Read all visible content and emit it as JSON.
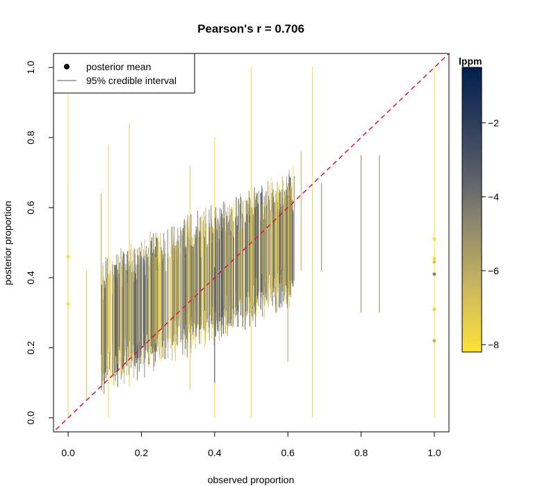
{
  "chart_data": {
    "type": "scatter",
    "title": "Pearson's r = 0.706",
    "xlabel": "observed proportion",
    "ylabel": "posterior proportion",
    "xlim": [
      -0.04,
      1.04
    ],
    "ylim": [
      -0.04,
      1.04
    ],
    "x_ticks": [
      "0.0",
      "0.2",
      "0.4",
      "0.6",
      "0.8",
      "1.0"
    ],
    "y_ticks": [
      "0.0",
      "0.2",
      "0.4",
      "0.6",
      "0.8",
      "1.0"
    ],
    "x_tick_values": [
      0,
      0.2,
      0.4,
      0.6,
      0.8,
      1.0
    ],
    "y_tick_values": [
      0,
      0.2,
      0.4,
      0.6,
      0.8,
      1.0
    ],
    "reference_line": {
      "from": [
        0,
        0
      ],
      "to": [
        1,
        1
      ],
      "style": "dashed",
      "color": "#dc143c"
    },
    "legend": {
      "placement": "top-left",
      "entries": [
        {
          "label": "posterior mean",
          "symbol": "point"
        },
        {
          "label": "95% credible interval",
          "symbol": "line"
        }
      ]
    },
    "colorbar": {
      "title": "lppm",
      "range": [
        -8.2,
        -0.5
      ],
      "tick_values": [
        -2,
        -4,
        -6,
        -8
      ],
      "tick_labels": [
        "−2",
        "−4",
        "−6",
        "−8"
      ],
      "colors": [
        "#fee238",
        "#cdb85e",
        "#8d886d",
        "#5a5f6a",
        "#2f3e5c",
        "#002050"
      ]
    },
    "series": [
      {
        "kind": "interval",
        "points": [
          {
            "x": 0.0,
            "low": 0.0,
            "high": 0.93,
            "lppm": -8
          },
          {
            "x": 0.0,
            "low": 0.0,
            "high": 0.67,
            "lppm": -8
          },
          {
            "x": 0.05,
            "low": 0.05,
            "high": 0.42,
            "lppm": -7
          },
          {
            "x": 0.09,
            "low": 0.18,
            "high": 0.64,
            "lppm": -6
          },
          {
            "x": 0.11,
            "low": 0.0,
            "high": 0.78,
            "lppm": -7.8
          },
          {
            "x": 0.167,
            "low": 0.09,
            "high": 0.84,
            "lppm": -7.5
          },
          {
            "x": 0.2,
            "low": 0.2,
            "high": 0.46,
            "lppm": -4
          },
          {
            "x": 0.333,
            "low": 0.08,
            "high": 0.72,
            "lppm": -7.5
          },
          {
            "x": 0.4,
            "low": 0.0,
            "high": 0.8,
            "lppm": -7.9
          },
          {
            "x": 0.4,
            "low": 0.1,
            "high": 0.43,
            "lppm": -2.5
          },
          {
            "x": 0.5,
            "low": 0.0,
            "high": 1.0,
            "lppm": -8
          },
          {
            "x": 0.6,
            "low": 0.16,
            "high": 0.61,
            "lppm": -6
          },
          {
            "x": 0.636,
            "low": 0.42,
            "high": 0.76,
            "lppm": -6.2
          },
          {
            "x": 0.667,
            "low": 0.0,
            "high": 1.0,
            "lppm": -8
          },
          {
            "x": 0.692,
            "low": 0.42,
            "high": 0.67,
            "lppm": -5
          },
          {
            "x": 0.8,
            "low": 0.3,
            "high": 0.75,
            "lppm": -5
          },
          {
            "x": 0.85,
            "low": 0.3,
            "high": 0.75,
            "lppm": -5
          },
          {
            "x": 1.0,
            "low": 0.0,
            "high": 1.0,
            "lppm": -8
          }
        ]
      },
      {
        "kind": "posterior_mean",
        "points": [
          {
            "x": 0.0,
            "y": 0.46,
            "lppm": -8
          },
          {
            "x": 0.0,
            "y": 0.325,
            "lppm": -8
          },
          {
            "x": 1.0,
            "y": 0.51,
            "lppm": -8
          },
          {
            "x": 1.0,
            "y": 0.455,
            "lppm": -7.8
          },
          {
            "x": 1.0,
            "y": 0.445,
            "lppm": -7
          },
          {
            "x": 1.0,
            "y": 0.41,
            "lppm": -5
          },
          {
            "x": 1.0,
            "y": 0.31,
            "lppm": -7.6
          },
          {
            "x": 1.0,
            "y": 0.22,
            "lppm": -6.5
          }
        ]
      }
    ],
    "dense_cloud": {
      "description_values": {
        "x_range": [
          0.09,
          0.62
        ],
        "intercept": 0.22,
        "slope": 0.48,
        "count": 720
      }
    }
  }
}
